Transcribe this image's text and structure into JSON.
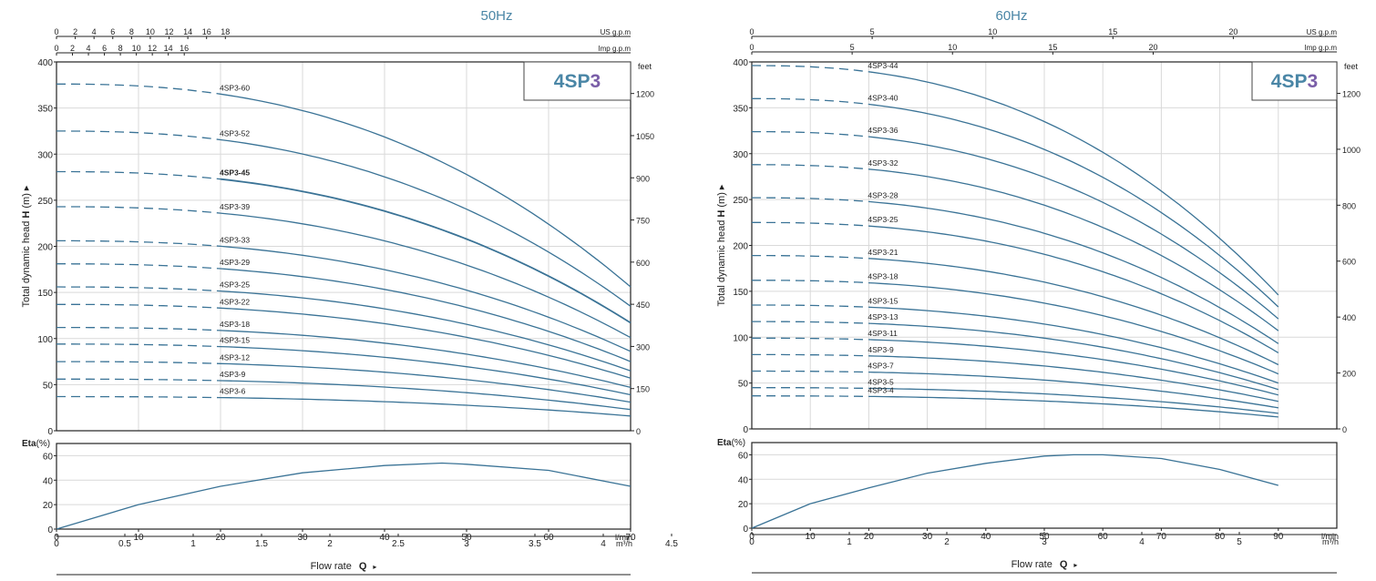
{
  "brand_color": "#4a86a6",
  "curve_color": "#3a7396",
  "panels": [
    {
      "freq_title": "50Hz",
      "model_title": "4SP",
      "model_digit": "3",
      "us_gpm_label": "US g.p.m",
      "imp_gpm_label": "Imp g.p.m",
      "feet_label": "feet",
      "head_label_pre": "Total dynamic head ",
      "head_label_bold": "H",
      "head_label_post": " (m)",
      "eta_label": "Eta",
      "eta_unit": "(%)",
      "lmin_label": "l/min",
      "m3h_label": "m³/h",
      "flow_label": "Flow  rate",
      "flow_q": "Q",
      "highlighted_curve": "4SP3-45",
      "chart_data": {
        "type": "line",
        "title": "50Hz",
        "xlabel": "Flow rate Q",
        "ylabel": "Total dynamic head H (m)",
        "x_unit": "l/min",
        "xlim": [
          0,
          70
        ],
        "ylim": [
          0,
          400
        ],
        "x_ticks_lmin": [
          0,
          10,
          20,
          30,
          40,
          50,
          60,
          70
        ],
        "y_ticks": [
          0,
          50,
          100,
          150,
          200,
          250,
          300,
          350,
          400
        ],
        "feet_ticks": [
          0,
          150,
          300,
          450,
          600,
          750,
          900,
          1050,
          1200
        ],
        "us_gpm_ticks": [
          0,
          2,
          4,
          6,
          8,
          10,
          12,
          14,
          16,
          18
        ],
        "imp_gpm_ticks": [
          0,
          2,
          4,
          6,
          8,
          10,
          12,
          14,
          16
        ],
        "m3h_ticks": [
          0,
          0.5,
          1,
          1.5,
          2,
          2.5,
          3,
          3.5,
          4,
          4.5
        ],
        "x_max": 70,
        "dash_end": 20,
        "series": [
          {
            "name": "4SP3-60",
            "shutoff": 376,
            "end": 156
          },
          {
            "name": "4SP3-52",
            "shutoff": 325,
            "end": 135
          },
          {
            "name": "4SP3-45",
            "shutoff": 281,
            "end": 117
          },
          {
            "name": "4SP3-39",
            "shutoff": 243,
            "end": 101
          },
          {
            "name": "4SP3-33",
            "shutoff": 206,
            "end": 86
          },
          {
            "name": "4SP3-29",
            "shutoff": 181,
            "end": 75
          },
          {
            "name": "4SP3-25",
            "shutoff": 156,
            "end": 65
          },
          {
            "name": "4SP3-22",
            "shutoff": 137,
            "end": 57
          },
          {
            "name": "4SP3-18",
            "shutoff": 112,
            "end": 47
          },
          {
            "name": "4SP3-15",
            "shutoff": 94,
            "end": 39
          },
          {
            "name": "4SP3-12",
            "shutoff": 75,
            "end": 31
          },
          {
            "name": "4SP3-9",
            "shutoff": 56,
            "end": 23
          },
          {
            "name": "4SP3-6",
            "shutoff": 37,
            "end": 16
          }
        ],
        "efficiency": {
          "ylim": [
            0,
            70
          ],
          "y_ticks": [
            0,
            20,
            40,
            60
          ],
          "x": [
            0,
            10,
            20,
            30,
            40,
            47,
            50,
            60,
            70
          ],
          "y": [
            0,
            20,
            35,
            46,
            52,
            54,
            53,
            48,
            35
          ]
        }
      }
    },
    {
      "freq_title": "60Hz",
      "model_title": "4SP",
      "model_digit": "3",
      "us_gpm_label": "US g.p.m",
      "imp_gpm_label": "Imp g.p.m",
      "feet_label": "feet",
      "head_label_pre": "Total dynamic head ",
      "head_label_bold": "H",
      "head_label_post": " (m)",
      "eta_label": "Eta",
      "eta_unit": "(%)",
      "lmin_label": "l/min",
      "m3h_label": "m³/h",
      "flow_label": "Flow  rate",
      "flow_q": "Q",
      "highlighted_curve": "",
      "chart_data": {
        "type": "line",
        "title": "60Hz",
        "xlabel": "Flow rate Q",
        "ylabel": "Total dynamic head H (m)",
        "x_unit": "l/min",
        "xlim": [
          0,
          100
        ],
        "ylim": [
          0,
          400
        ],
        "x_ticks_lmin": [
          0,
          10,
          20,
          30,
          40,
          50,
          60,
          70,
          80,
          90
        ],
        "y_ticks": [
          0,
          50,
          100,
          150,
          200,
          250,
          300,
          350,
          400
        ],
        "feet_ticks": [
          0,
          200,
          400,
          600,
          800,
          1000,
          1200
        ],
        "us_gpm_ticks": [
          0,
          5,
          10,
          15,
          20
        ],
        "imp_gpm_ticks": [
          0,
          5,
          10,
          15,
          20
        ],
        "m3h_ticks": [
          0,
          1,
          2,
          3,
          4,
          5
        ],
        "x_max": 90,
        "dash_end": 20,
        "series": [
          {
            "name": "4SP3-44",
            "shutoff": 396,
            "end": 146
          },
          {
            "name": "4SP3-40",
            "shutoff": 360,
            "end": 133
          },
          {
            "name": "4SP3-36",
            "shutoff": 324,
            "end": 120
          },
          {
            "name": "4SP3-32",
            "shutoff": 288,
            "end": 107
          },
          {
            "name": "4SP3-28",
            "shutoff": 252,
            "end": 93
          },
          {
            "name": "4SP3-25",
            "shutoff": 225,
            "end": 83
          },
          {
            "name": "4SP3-21",
            "shutoff": 189,
            "end": 70
          },
          {
            "name": "4SP3-18",
            "shutoff": 162,
            "end": 60
          },
          {
            "name": "4SP3-15",
            "shutoff": 135,
            "end": 50
          },
          {
            "name": "4SP3-13",
            "shutoff": 117,
            "end": 43
          },
          {
            "name": "4SP3-11",
            "shutoff": 99,
            "end": 37
          },
          {
            "name": "4SP3-9",
            "shutoff": 81,
            "end": 30
          },
          {
            "name": "4SP3-7",
            "shutoff": 63,
            "end": 23
          },
          {
            "name": "4SP3-5",
            "shutoff": 45,
            "end": 17
          },
          {
            "name": "4SP3-4",
            "shutoff": 36,
            "end": 13
          }
        ],
        "efficiency": {
          "ylim": [
            0,
            70
          ],
          "y_ticks": [
            0,
            20,
            40,
            60
          ],
          "x": [
            0,
            10,
            20,
            30,
            40,
            50,
            55,
            60,
            70,
            80,
            90
          ],
          "y": [
            0,
            20,
            33,
            45,
            53,
            59,
            60,
            60,
            57,
            48,
            35
          ]
        }
      }
    }
  ]
}
